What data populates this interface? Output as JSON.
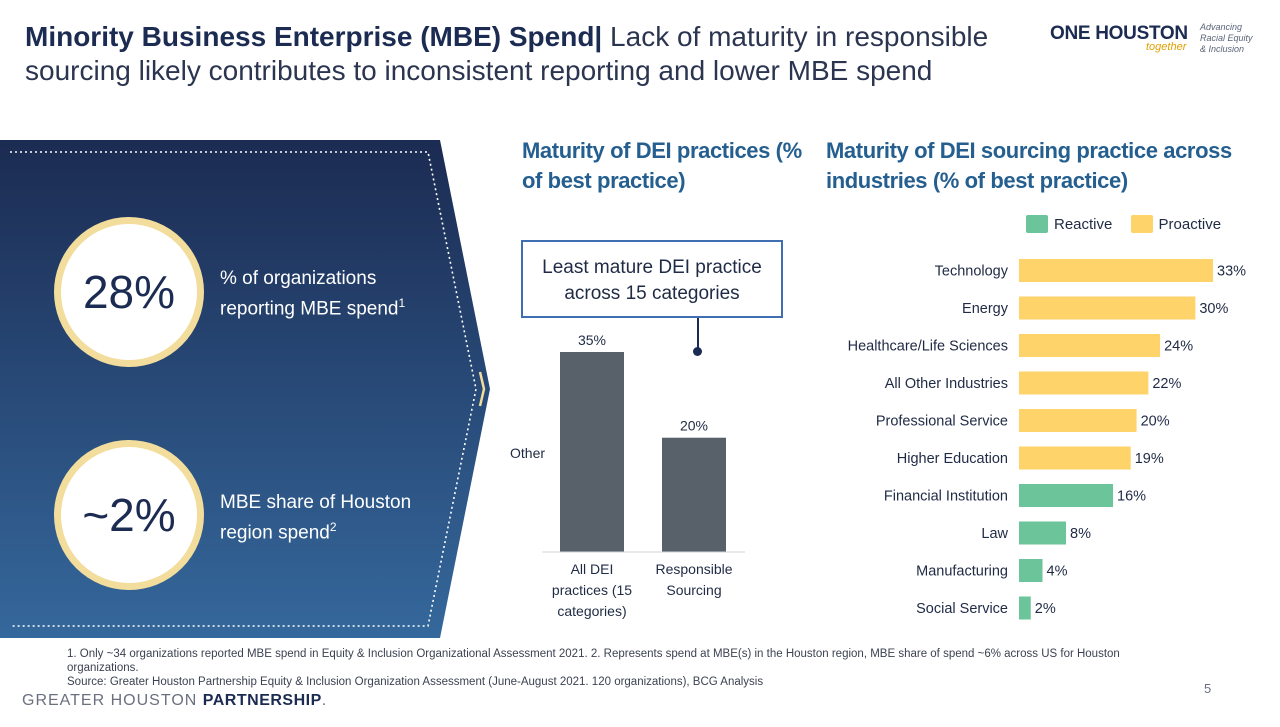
{
  "header": {
    "title_bold": "Minority Business Enterprise (MBE) Spend|",
    "title_rest": " Lack of maturity in responsible sourcing likely contributes to inconsistent reporting and lower MBE spend"
  },
  "logo": {
    "one": "ONE",
    "houston": "HOUSTON",
    "together": "together",
    "side_line1": "Advancing",
    "side_line2": "Racial Equity",
    "side_line3": "& Inclusion"
  },
  "kpis": [
    {
      "value": "28%",
      "label": "% of organizations reporting MBE spend",
      "note": "1"
    },
    {
      "value": "~2%",
      "label": "MBE share of Houston region spend",
      "note": "2"
    }
  ],
  "colors": {
    "panel_top": "#1b2b52",
    "panel_bottom": "#35689c",
    "bar_dark": "#58616a",
    "reactive": "#6cc59a",
    "proactive": "#fdd36a",
    "heading": "#245f8f"
  },
  "callout": {
    "text": "Least mature DEI practice across 15 categories"
  },
  "chart_data": [
    {
      "type": "bar",
      "title": "Maturity of DEI practices (% of best practice)",
      "categories": [
        "All DEI practices (15 categories)",
        "Responsible Sourcing"
      ],
      "values": [
        35,
        20
      ],
      "data_labels": [
        "35%",
        "20%"
      ],
      "side_label": "Other",
      "ylim": [
        0,
        40
      ]
    },
    {
      "type": "bar",
      "orientation": "horizontal",
      "title": "Maturity of DEI sourcing practice across industries (% of best practice)",
      "legend": [
        {
          "name": "Reactive",
          "color": "#6cc59a"
        },
        {
          "name": "Proactive",
          "color": "#fdd36a"
        }
      ],
      "legend_position": "top",
      "categories": [
        "Technology",
        "Energy",
        "Healthcare/Life Sciences",
        "All Other Industries",
        "Professional Service",
        "Higher Education",
        "Financial Institution",
        "Law",
        "Manufacturing",
        "Social Service"
      ],
      "values": [
        33,
        30,
        24,
        22,
        20,
        19,
        16,
        8,
        4,
        2
      ],
      "data_labels": [
        "33%",
        "30%",
        "24%",
        "22%",
        "20%",
        "19%",
        "16%",
        "8%",
        "4%",
        "2%"
      ],
      "group": [
        "Proactive",
        "Proactive",
        "Proactive",
        "Proactive",
        "Proactive",
        "Proactive",
        "Reactive",
        "Reactive",
        "Reactive",
        "Reactive"
      ],
      "xlim": [
        0,
        33
      ]
    }
  ],
  "footnotes": {
    "line1": "1. Only ~34 organizations reported MBE spend in Equity & Inclusion Organizational Assessment 2021. 2. Represents spend at MBE(s) in the Houston region, MBE share of spend ~6% across US for Houston organizations.",
    "line2": "Source: Greater Houston Partnership Equity & Inclusion Organization Assessment (June-August 2021. 120 organizations), BCG Analysis"
  },
  "page_number": "5",
  "brand": {
    "prefix": "GREATER HOUSTON ",
    "strong": "PARTNERSHIP",
    "suffix": "."
  }
}
